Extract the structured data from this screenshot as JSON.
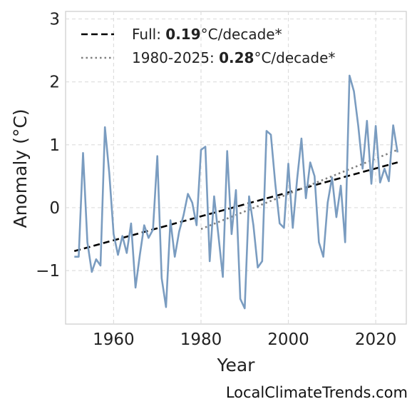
{
  "chart_data": {
    "type": "line",
    "xlabel": "Year",
    "ylabel": "Anomaly (°C)",
    "xlim": [
      1949,
      2027
    ],
    "ylim": [
      -1.85,
      3.12
    ],
    "xticks": [
      1960,
      1980,
      2000,
      2020
    ],
    "yticks": [
      3,
      2,
      1,
      0,
      -1
    ],
    "ytick_labels": [
      "3",
      "2",
      "1",
      "0",
      "−1"
    ],
    "grid": true,
    "legend_position": "top-left",
    "series": [
      {
        "kind": "observed",
        "color": "#7a9cc0",
        "x": [
          1951,
          1952,
          1953,
          1954,
          1955,
          1956,
          1957,
          1958,
          1959,
          1960,
          1961,
          1962,
          1963,
          1964,
          1965,
          1966,
          1967,
          1968,
          1969,
          1970,
          1971,
          1972,
          1973,
          1974,
          1975,
          1976,
          1977,
          1978,
          1979,
          1980,
          1981,
          1982,
          1983,
          1984,
          1985,
          1986,
          1987,
          1988,
          1989,
          1990,
          1991,
          1992,
          1993,
          1994,
          1995,
          1996,
          1997,
          1998,
          1999,
          2000,
          2001,
          2002,
          2003,
          2004,
          2005,
          2006,
          2007,
          2008,
          2009,
          2010,
          2011,
          2012,
          2013,
          2014,
          2015,
          2016,
          2017,
          2018,
          2019,
          2020,
          2021,
          2022,
          2023,
          2024,
          2025
        ],
        "y": [
          -0.78,
          -0.78,
          0.87,
          -0.55,
          -1.02,
          -0.82,
          -0.92,
          1.28,
          0.55,
          -0.42,
          -0.75,
          -0.45,
          -0.72,
          -0.25,
          -1.27,
          -0.75,
          -0.28,
          -0.48,
          -0.35,
          0.82,
          -1.12,
          -1.58,
          -0.2,
          -0.78,
          -0.38,
          -0.12,
          0.22,
          0.08,
          -0.28,
          0.92,
          0.97,
          -0.85,
          0.18,
          -0.45,
          -1.1,
          0.9,
          -0.42,
          0.28,
          -1.45,
          -1.6,
          0.18,
          -0.28,
          -0.95,
          -0.85,
          1.22,
          1.16,
          0.38,
          -0.25,
          -0.32,
          0.7,
          -0.32,
          0.45,
          1.1,
          0.15,
          0.72,
          0.5,
          -0.55,
          -0.78,
          0.08,
          0.48,
          -0.15,
          0.35,
          -0.55,
          2.1,
          1.85,
          1.3,
          0.62,
          1.38,
          0.38,
          1.3,
          0.4,
          0.62,
          0.42,
          1.31,
          0.88
        ]
      }
    ],
    "trendlines": [
      {
        "name_prefix": "Full: ",
        "value": "0.19",
        "unit": "°C/decade*",
        "style": "dashed",
        "color": "#000000",
        "x": [
          1951,
          2025
        ],
        "y": [
          -0.69,
          0.72
        ]
      },
      {
        "name_prefix": "1980-2025: ",
        "value": "0.28",
        "unit": "°C/decade*",
        "style": "dotted",
        "color": "#808080",
        "x": [
          1980,
          2025
        ],
        "y": [
          -0.34,
          0.92
        ]
      }
    ]
  },
  "watermark": "LocalClimateTrends.com"
}
